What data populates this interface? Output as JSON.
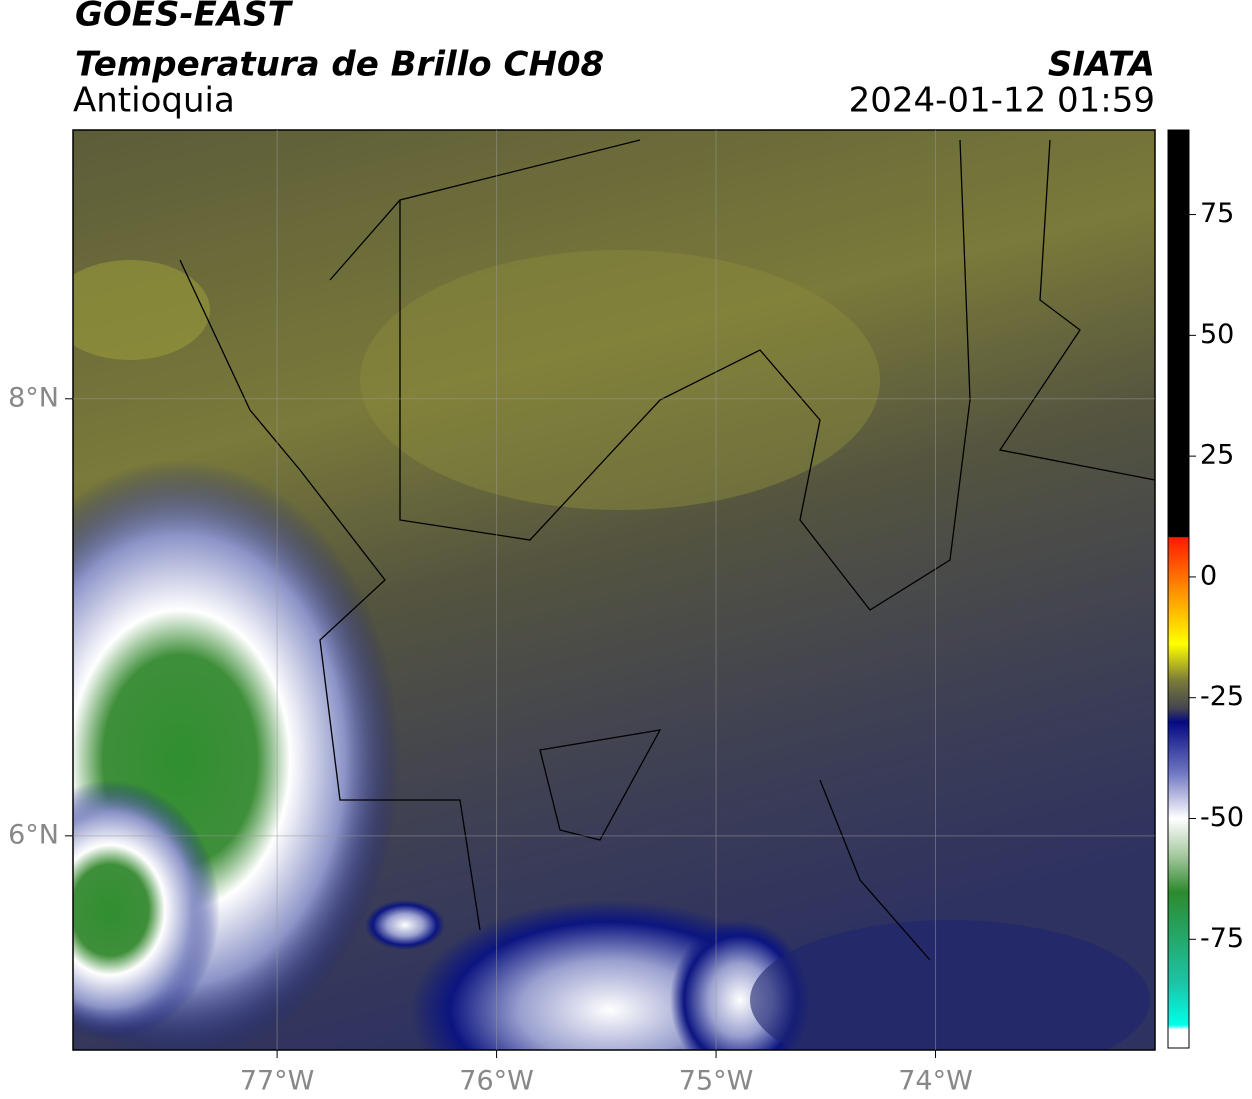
{
  "header": {
    "title": "GOES-EAST",
    "subtitle": "Temperatura de Brillo CH08",
    "region": "Antioquia",
    "source": "SIATA",
    "datetime": "2024-01-12 01:59"
  },
  "map": {
    "xlim": [
      -77.93,
      -73.0
    ],
    "ylim": [
      5.02,
      9.23
    ],
    "xticks": [
      {
        "value": -77,
        "label": "77°W"
      },
      {
        "value": -76,
        "label": "76°W"
      },
      {
        "value": -75,
        "label": "75°W"
      },
      {
        "value": -74,
        "label": "74°W"
      }
    ],
    "yticks": [
      {
        "value": 6,
        "label": "6°N"
      },
      {
        "value": 8,
        "label": "8°N"
      }
    ],
    "grid": true
  },
  "colorbar": {
    "lim": [
      -97.5,
      92.5
    ],
    "ticks": [
      75,
      50,
      25,
      0,
      -25,
      -50,
      -75
    ]
  }
}
